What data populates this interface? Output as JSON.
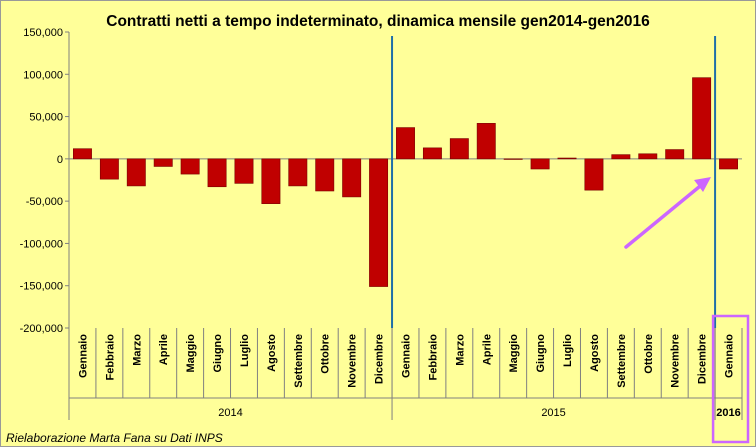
{
  "colors": {
    "background": "#ffff99",
    "bar": "#c00000",
    "separator": "#1f6fa8",
    "annotation": "#cc66ff",
    "axis": "#808080"
  },
  "chart_data": {
    "type": "bar",
    "title": "Contratti netti a tempo indeterminato, dinamica mensile gen2014-gen2016",
    "credit": "Rielaborazione Marta Fana su Dati INPS",
    "ylim": [
      -200000,
      150000
    ],
    "yticks": [
      "150,000",
      "100,000",
      "50,000",
      "0",
      "-50,000",
      "-100,000",
      "-150,000",
      "-200,000"
    ],
    "ytick_values": [
      150000,
      100000,
      50000,
      0,
      -50000,
      -100000,
      -150000,
      -200000
    ],
    "grid": false,
    "legend": "none",
    "categories": [
      "Gennaio",
      "Febbraio",
      "Marzo",
      "Aprile",
      "Maggio",
      "Giugno",
      "Luglio",
      "Agosto",
      "Settembre",
      "Ottobre",
      "Novembre",
      "Dicembre",
      "Gennaio",
      "Febbraio",
      "Marzo",
      "Aprile",
      "Maggio",
      "Giugno",
      "Luglio",
      "Agosto",
      "Settembre",
      "Ottobre",
      "Novembre",
      "Dicembre",
      "Gennaio"
    ],
    "years": [
      {
        "label": "2014",
        "start": 0,
        "end": 11
      },
      {
        "label": "2015",
        "start": 12,
        "end": 23
      },
      {
        "label": "2016",
        "start": 24,
        "end": 24
      }
    ],
    "values": [
      12000,
      -24000,
      -32000,
      -9000,
      -18000,
      -33000,
      -29000,
      -53000,
      -32000,
      -38000,
      -45000,
      -151000,
      37000,
      13000,
      24000,
      42000,
      0,
      -12000,
      1000,
      -37000,
      5000,
      6000,
      11000,
      96000,
      -12000
    ],
    "separators_after": [
      11,
      23
    ],
    "annotations": [
      "arrow pointing to January 2016 bar",
      "box around 2016 label"
    ]
  }
}
